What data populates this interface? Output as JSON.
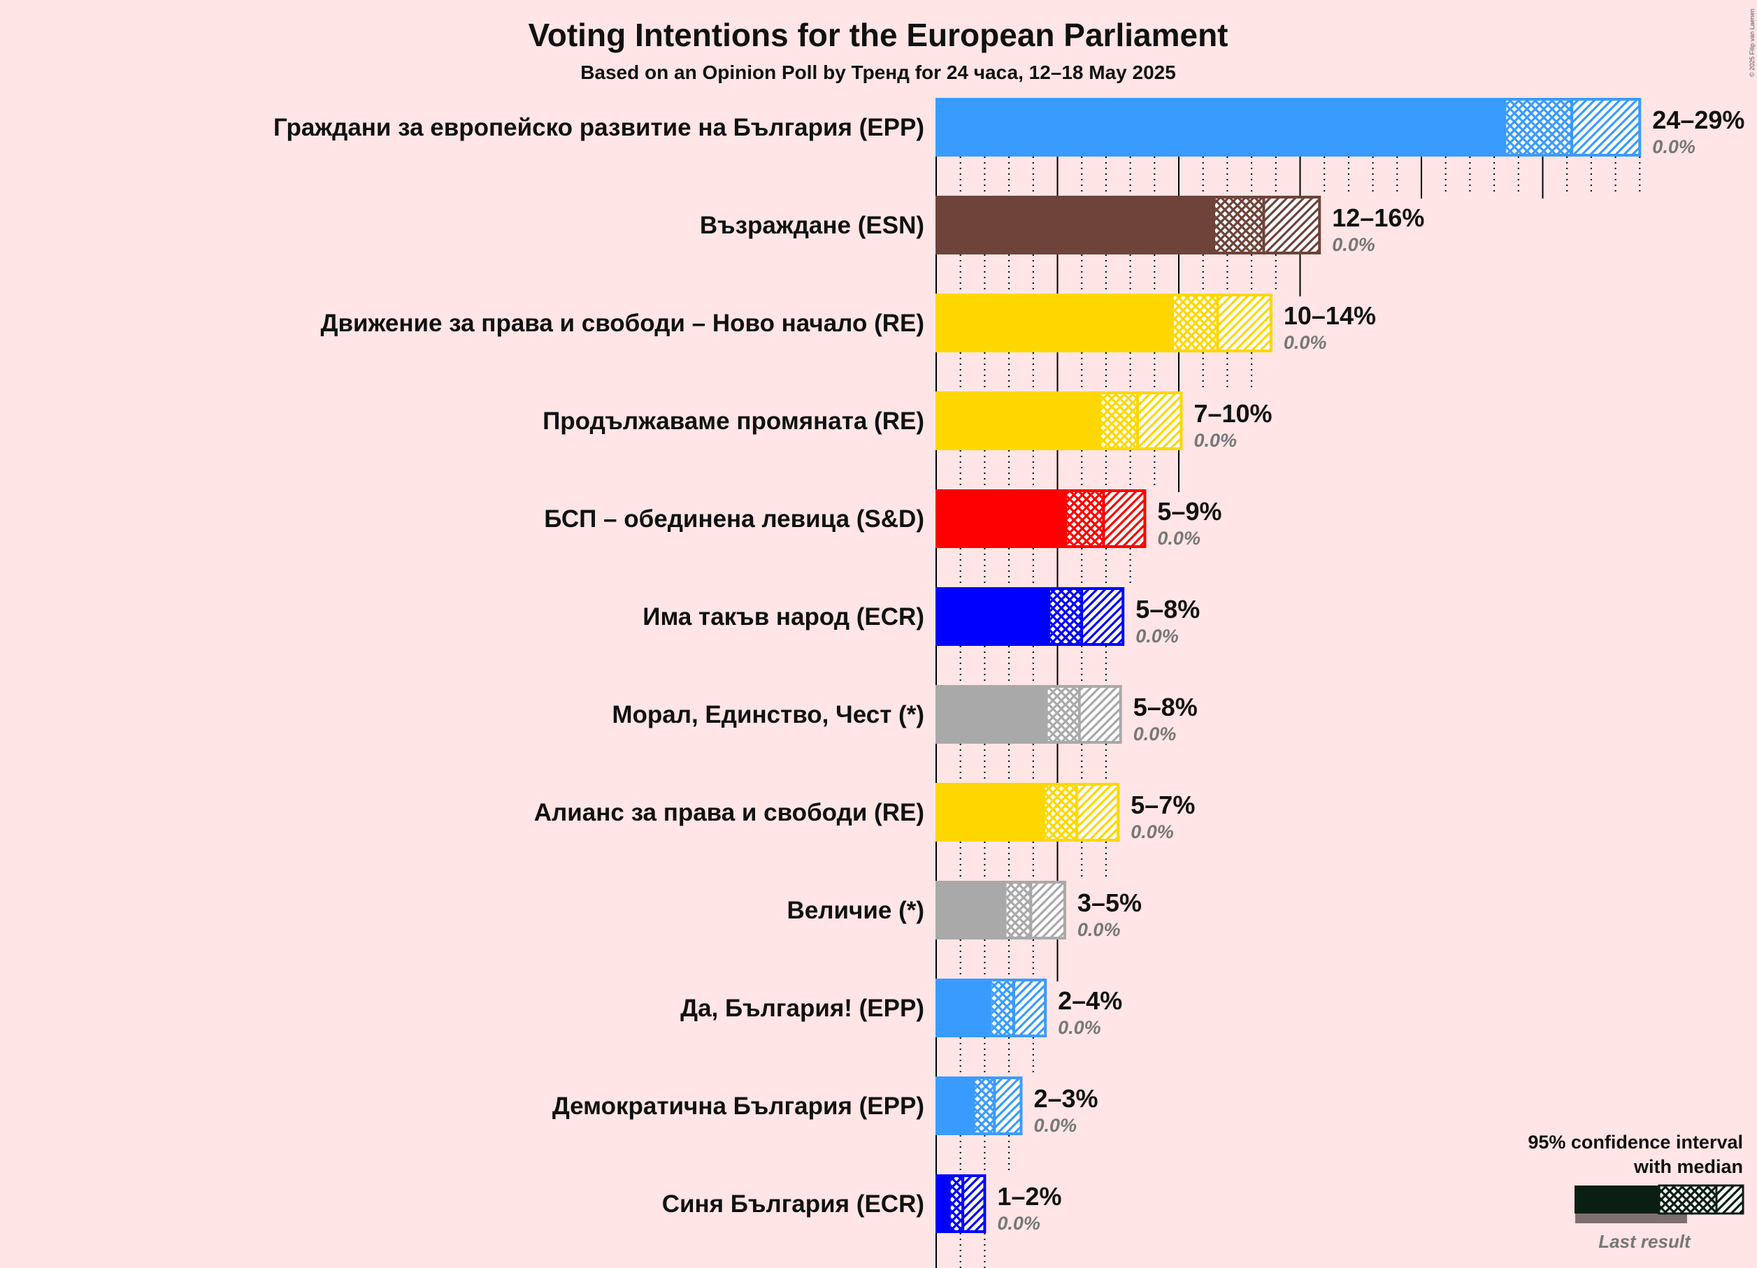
{
  "title": "Voting Intentions for the European Parliament",
  "subtitle": "Based on an Opinion Poll by Тренд for 24 часа, 12–18 May 2025",
  "copyright": "© 2025 Filip van Laenen",
  "legend": {
    "title_line1": "95% confidence interval",
    "title_line2": "with median",
    "last_result": "Last result",
    "color": "#0A1E14"
  },
  "chart_data": {
    "type": "bar",
    "orientation": "horizontal",
    "value_unit": "%",
    "xlim": [
      0,
      29.7
    ],
    "major_gridlines_every": 5,
    "minor_gridlines_every": 1,
    "categories": [
      "Граждани за европейско развитие на България (EPP)",
      "Възраждане (ESN)",
      "Движение за права и свободи – Ново начало (RE)",
      "Продължаваме промяната (RE)",
      "БСП – обединена левица (S&D)",
      "Има такъв народ (ECR)",
      "Морал, Единство, Чест (*)",
      "Алианс за права и свободи (RE)",
      "Величие (*)",
      "Да, България! (EPP)",
      "Демократична България (EPP)",
      "Синя България (ECR)"
    ],
    "series": [
      {
        "low": 23.5,
        "median": 26.2,
        "high": 29.0,
        "range_label": "24–29%",
        "last_result_label": "0.0%",
        "last_result": 0.0,
        "color": "#3A9BFF"
      },
      {
        "low": 11.5,
        "median": 13.5,
        "high": 15.8,
        "range_label": "12–16%",
        "last_result_label": "0.0%",
        "last_result": 0.0,
        "color": "#6E433A"
      },
      {
        "low": 9.8,
        "median": 11.6,
        "high": 13.8,
        "range_label": "10–14%",
        "last_result_label": "0.0%",
        "last_result": 0.0,
        "color": "#FFD700"
      },
      {
        "low": 6.8,
        "median": 8.3,
        "high": 10.1,
        "range_label": "7–10%",
        "last_result_label": "0.0%",
        "last_result": 0.0,
        "color": "#FFD700"
      },
      {
        "low": 5.4,
        "median": 6.9,
        "high": 8.6,
        "range_label": "5–9%",
        "last_result_label": "0.0%",
        "last_result": 0.0,
        "color": "#FF0000"
      },
      {
        "low": 4.7,
        "median": 6.0,
        "high": 7.7,
        "range_label": "5–8%",
        "last_result_label": "0.0%",
        "last_result": 0.0,
        "color": "#0000FF"
      },
      {
        "low": 4.6,
        "median": 5.9,
        "high": 7.6,
        "range_label": "5–8%",
        "last_result_label": "0.0%",
        "last_result": 0.0,
        "color": "#A9A9A9"
      },
      {
        "low": 4.5,
        "median": 5.8,
        "high": 7.5,
        "range_label": "5–7%",
        "last_result_label": "0.0%",
        "last_result": 0.0,
        "color": "#FFD700"
      },
      {
        "low": 2.9,
        "median": 3.9,
        "high": 5.3,
        "range_label": "3–5%",
        "last_result_label": "0.0%",
        "last_result": 0.0,
        "color": "#A9A9A9"
      },
      {
        "low": 2.3,
        "median": 3.2,
        "high": 4.5,
        "range_label": "2–4%",
        "last_result_label": "0.0%",
        "last_result": 0.0,
        "color": "#3A9BFF"
      },
      {
        "low": 1.6,
        "median": 2.4,
        "high": 3.5,
        "range_label": "2–3%",
        "last_result_label": "0.0%",
        "last_result": 0.0,
        "color": "#3A9BFF"
      },
      {
        "low": 0.6,
        "median": 1.1,
        "high": 2.0,
        "range_label": "1–2%",
        "last_result_label": "0.0%",
        "last_result": 0.0,
        "color": "#0000FF"
      }
    ]
  }
}
